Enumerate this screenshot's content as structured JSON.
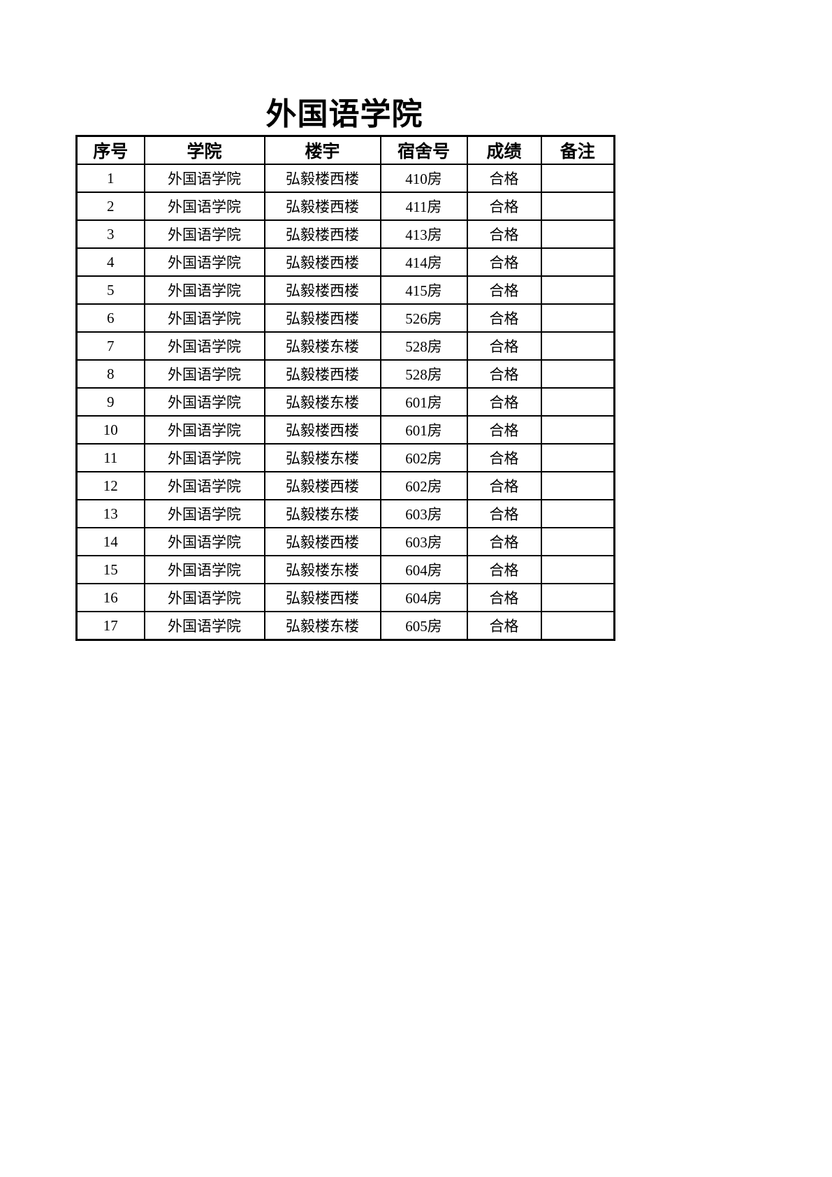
{
  "title": "外国语学院",
  "table": {
    "headers": [
      "序号",
      "学院",
      "楼宇",
      "宿舍号",
      "成绩",
      "备注"
    ],
    "rows": [
      [
        "1",
        "外国语学院",
        "弘毅楼西楼",
        "410房",
        "合格",
        ""
      ],
      [
        "2",
        "外国语学院",
        "弘毅楼西楼",
        "411房",
        "合格",
        ""
      ],
      [
        "3",
        "外国语学院",
        "弘毅楼西楼",
        "413房",
        "合格",
        ""
      ],
      [
        "4",
        "外国语学院",
        "弘毅楼西楼",
        "414房",
        "合格",
        ""
      ],
      [
        "5",
        "外国语学院",
        "弘毅楼西楼",
        "415房",
        "合格",
        ""
      ],
      [
        "6",
        "外国语学院",
        "弘毅楼西楼",
        "526房",
        "合格",
        ""
      ],
      [
        "7",
        "外国语学院",
        "弘毅楼东楼",
        "528房",
        "合格",
        ""
      ],
      [
        "8",
        "外国语学院",
        "弘毅楼西楼",
        "528房",
        "合格",
        ""
      ],
      [
        "9",
        "外国语学院",
        "弘毅楼东楼",
        "601房",
        "合格",
        ""
      ],
      [
        "10",
        "外国语学院",
        "弘毅楼西楼",
        "601房",
        "合格",
        ""
      ],
      [
        "11",
        "外国语学院",
        "弘毅楼东楼",
        "602房",
        "合格",
        ""
      ],
      [
        "12",
        "外国语学院",
        "弘毅楼西楼",
        "602房",
        "合格",
        ""
      ],
      [
        "13",
        "外国语学院",
        "弘毅楼东楼",
        "603房",
        "合格",
        ""
      ],
      [
        "14",
        "外国语学院",
        "弘毅楼西楼",
        "603房",
        "合格",
        ""
      ],
      [
        "15",
        "外国语学院",
        "弘毅楼东楼",
        "604房",
        "合格",
        ""
      ],
      [
        "16",
        "外国语学院",
        "弘毅楼西楼",
        "604房",
        "合格",
        ""
      ],
      [
        "17",
        "外国语学院",
        "弘毅楼东楼",
        "605房",
        "合格",
        ""
      ]
    ]
  },
  "colors": {
    "background": "#ffffff",
    "text": "#000000",
    "border": "#000000"
  }
}
